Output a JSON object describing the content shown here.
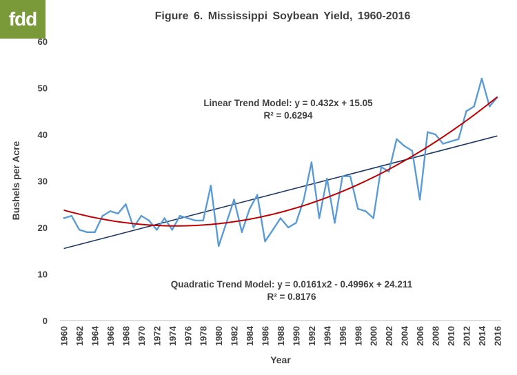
{
  "logo_text": "fdd",
  "chart_data": {
    "type": "line",
    "title": "Figure  6. Mississippi  Soybean  Yield,  1960-2016",
    "xlabel": "Year",
    "ylabel": "Bushels per Acre",
    "xlim": [
      1960,
      2016
    ],
    "ylim": [
      0,
      60
    ],
    "yticks": [
      0,
      10,
      20,
      30,
      40,
      50,
      60
    ],
    "xticks": [
      1960,
      1962,
      1964,
      1966,
      1968,
      1970,
      1972,
      1974,
      1976,
      1978,
      1980,
      1982,
      1984,
      1986,
      1988,
      1990,
      1992,
      1994,
      1996,
      1998,
      2000,
      2002,
      2004,
      2006,
      2008,
      2010,
      2012,
      2014,
      2016
    ],
    "grid": false,
    "series": [
      {
        "kind": "actual",
        "color": "#5b9bd5",
        "x": [
          1960,
          1961,
          1962,
          1963,
          1964,
          1965,
          1966,
          1967,
          1968,
          1969,
          1970,
          1971,
          1972,
          1973,
          1974,
          1975,
          1976,
          1977,
          1978,
          1979,
          1980,
          1981,
          1982,
          1983,
          1984,
          1985,
          1986,
          1987,
          1988,
          1989,
          1990,
          1991,
          1992,
          1993,
          1994,
          1995,
          1996,
          1997,
          1998,
          1999,
          2000,
          2001,
          2002,
          2003,
          2004,
          2005,
          2006,
          2007,
          2008,
          2009,
          2010,
          2011,
          2012,
          2013,
          2014,
          2015,
          2016
        ],
        "values": [
          22,
          22.5,
          19.5,
          19,
          19,
          22.5,
          23.5,
          23,
          25,
          20,
          22.5,
          21.5,
          19.5,
          22,
          19.5,
          22.5,
          22,
          21.5,
          21.5,
          29,
          16,
          21,
          26,
          19,
          24,
          27,
          17,
          19.5,
          22,
          20,
          21,
          26,
          34,
          22,
          30.5,
          21,
          31,
          31,
          24,
          23.5,
          22,
          33,
          32,
          39,
          37.5,
          36.5,
          26,
          40.5,
          40,
          38,
          38.5,
          39,
          45,
          46,
          52,
          46,
          48
        ]
      },
      {
        "kind": "linear-trend",
        "color": "#1f3864",
        "equation": "y = 0.432x + 15.05"
      },
      {
        "kind": "quadratic-trend",
        "color": "#c00000",
        "equation": "y = 0.0161x2 - 0.4996x + 24.211"
      }
    ],
    "annotations": {
      "linear_line1": "Linear Trend Model:  y = 0.432x + 15.05",
      "linear_line2": "R² = 0.6294",
      "quad_line1": "Quadratic Trend Model:  y = 0.0161x2 - 0.4996x + 24.211",
      "quad_line2": "R² = 0.8176"
    }
  }
}
